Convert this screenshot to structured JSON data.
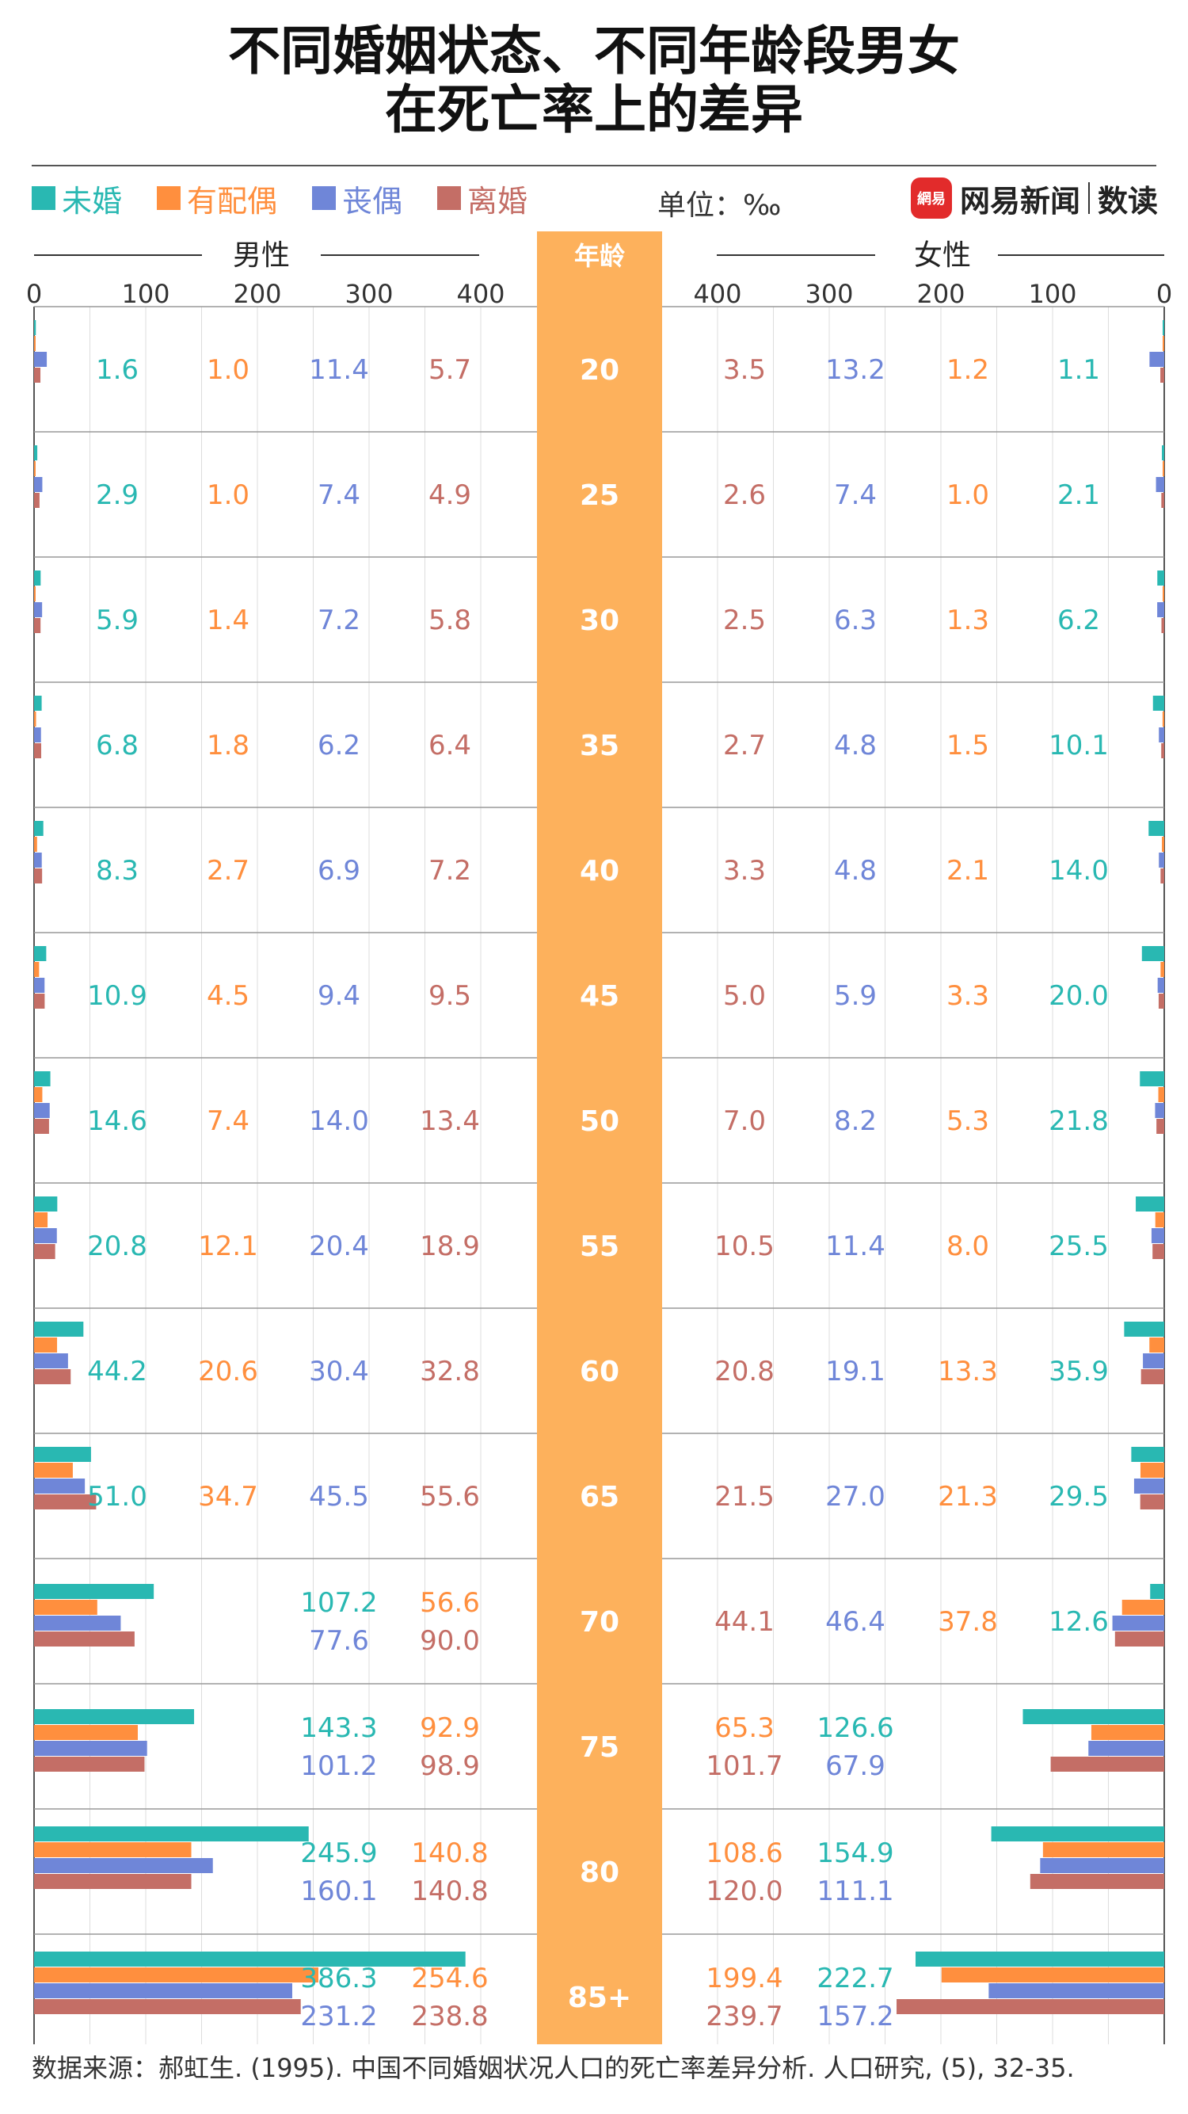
{
  "title_lines": [
    "不同婚姻状态、不同年龄段男女",
    "在死亡率上的差异"
  ],
  "legend": [
    {
      "label": "未婚",
      "color": "#29b8b2"
    },
    {
      "label": "有配偶",
      "color": "#ff8f3e"
    },
    {
      "label": "丧偶",
      "color": "#6f86d8"
    },
    {
      "label": "离婚",
      "color": "#c46e66"
    }
  ],
  "unit_label": "单位：‰",
  "logo": {
    "mark": "網易",
    "text": "网易新闻",
    "sub": "数读"
  },
  "source": "数据来源：郝虹生. (1995). 中国不同婚姻状况人口的死亡率差异分析. 人口研究, (5), 32-35.",
  "chart_data": {
    "type": "bar",
    "orientation": "horizontal",
    "center_label": "年龄",
    "center_color": "#fdb15c",
    "male_label": "男性",
    "female_label": "女性",
    "male_ticks": [
      "0",
      "100",
      "200",
      "300",
      "400"
    ],
    "female_ticks": [
      "400",
      "300",
      "200",
      "100",
      "0"
    ],
    "xlim": [
      0,
      400
    ],
    "categories": [
      "20",
      "25",
      "30",
      "35",
      "40",
      "45",
      "50",
      "55",
      "60",
      "65",
      "70",
      "75",
      "80",
      "85+"
    ],
    "series_colors": [
      "#29b8b2",
      "#ff8f3e",
      "#6f86d8",
      "#c46e66"
    ],
    "male": {
      "未婚": [
        1.6,
        2.9,
        5.9,
        6.8,
        8.3,
        10.9,
        14.6,
        20.8,
        44.2,
        51.0,
        107.2,
        143.3,
        245.9,
        386.3
      ],
      "有配偶": [
        1.0,
        1.0,
        1.4,
        1.8,
        2.7,
        4.5,
        7.4,
        12.1,
        20.6,
        34.7,
        56.6,
        92.9,
        140.8,
        254.6
      ],
      "丧偶": [
        11.4,
        7.4,
        7.2,
        6.2,
        6.9,
        9.4,
        14.0,
        20.4,
        30.4,
        45.5,
        77.6,
        101.2,
        160.1,
        231.2
      ],
      "离婚": [
        5.7,
        4.9,
        5.8,
        6.4,
        7.2,
        9.5,
        13.4,
        18.9,
        32.8,
        55.6,
        90.0,
        98.9,
        140.8,
        238.8
      ]
    },
    "female": {
      "未婚": [
        1.1,
        2.1,
        6.2,
        10.1,
        14.0,
        20.0,
        21.8,
        25.5,
        35.9,
        29.5,
        12.6,
        126.6,
        154.9,
        222.7
      ],
      "有配偶": [
        1.2,
        1.0,
        1.3,
        1.5,
        2.1,
        3.3,
        5.3,
        8.0,
        13.3,
        21.3,
        37.8,
        65.3,
        108.6,
        199.4
      ],
      "丧偶": [
        13.2,
        7.4,
        6.3,
        4.8,
        4.8,
        5.9,
        8.2,
        11.4,
        19.1,
        27.0,
        46.4,
        67.9,
        111.1,
        157.2
      ],
      "离婚": [
        3.5,
        2.6,
        2.5,
        2.7,
        3.3,
        5.0,
        7.0,
        10.5,
        20.8,
        21.5,
        44.1,
        101.7,
        120.0,
        239.7
      ]
    }
  }
}
